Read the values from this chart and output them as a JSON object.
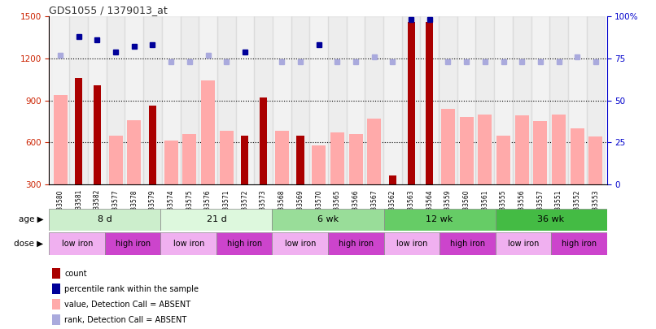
{
  "title": "GDS1055 / 1379013_at",
  "samples": [
    "GSM33580",
    "GSM33581",
    "GSM33582",
    "GSM33577",
    "GSM33578",
    "GSM33579",
    "GSM33574",
    "GSM33575",
    "GSM33576",
    "GSM33571",
    "GSM33572",
    "GSM33573",
    "GSM33568",
    "GSM33569",
    "GSM33570",
    "GSM33565",
    "GSM33566",
    "GSM33567",
    "GSM33562",
    "GSM33563",
    "GSM33564",
    "GSM33559",
    "GSM33560",
    "GSM33561",
    "GSM33555",
    "GSM33556",
    "GSM33557",
    "GSM33551",
    "GSM33552",
    "GSM33553"
  ],
  "count_values": [
    null,
    1060,
    1010,
    null,
    null,
    860,
    null,
    null,
    null,
    null,
    650,
    920,
    null,
    650,
    null,
    null,
    null,
    null,
    360,
    1460,
    1460,
    null,
    null,
    null,
    null,
    null,
    null,
    null,
    null,
    null
  ],
  "absent_values": [
    940,
    null,
    null,
    650,
    760,
    null,
    610,
    660,
    1040,
    680,
    null,
    null,
    680,
    null,
    580,
    670,
    660,
    770,
    null,
    null,
    null,
    840,
    780,
    800,
    650,
    790,
    750,
    800,
    700,
    640
  ],
  "rank_present": [
    null,
    88,
    86,
    79,
    82,
    83,
    null,
    null,
    null,
    null,
    79,
    null,
    null,
    null,
    83,
    null,
    null,
    null,
    null,
    98,
    98,
    null,
    null,
    null,
    null,
    null,
    null,
    null,
    null,
    null
  ],
  "rank_absent": [
    77,
    null,
    null,
    null,
    null,
    null,
    73,
    73,
    77,
    73,
    null,
    null,
    73,
    73,
    null,
    73,
    73,
    76,
    73,
    null,
    null,
    73,
    73,
    73,
    73,
    73,
    73,
    73,
    76,
    73
  ],
  "age_groups": [
    {
      "label": "8 d",
      "start": 0,
      "end": 6,
      "color": "#cceecc"
    },
    {
      "label": "21 d",
      "start": 6,
      "end": 12,
      "color": "#ddf8dd"
    },
    {
      "label": "6 wk",
      "start": 12,
      "end": 18,
      "color": "#99dd99"
    },
    {
      "label": "12 wk",
      "start": 18,
      "end": 24,
      "color": "#66cc66"
    },
    {
      "label": "36 wk",
      "start": 24,
      "end": 30,
      "color": "#44bb44"
    }
  ],
  "dose_groups": [
    {
      "label": "low iron",
      "start": 0,
      "end": 3,
      "color": "#f0b0f0"
    },
    {
      "label": "high iron",
      "start": 3,
      "end": 6,
      "color": "#cc44cc"
    },
    {
      "label": "low iron",
      "start": 6,
      "end": 9,
      "color": "#f0b0f0"
    },
    {
      "label": "high iron",
      "start": 9,
      "end": 12,
      "color": "#cc44cc"
    },
    {
      "label": "low iron",
      "start": 12,
      "end": 15,
      "color": "#f0b0f0"
    },
    {
      "label": "high iron",
      "start": 15,
      "end": 18,
      "color": "#cc44cc"
    },
    {
      "label": "low iron",
      "start": 18,
      "end": 21,
      "color": "#f0b0f0"
    },
    {
      "label": "high iron",
      "start": 21,
      "end": 24,
      "color": "#cc44cc"
    },
    {
      "label": "low iron",
      "start": 24,
      "end": 27,
      "color": "#f0b0f0"
    },
    {
      "label": "high iron",
      "start": 27,
      "end": 30,
      "color": "#cc44cc"
    }
  ],
  "ylim_left": [
    300,
    1500
  ],
  "ylim_right": [
    0,
    100
  ],
  "yticks_left": [
    300,
    600,
    900,
    1200,
    1500
  ],
  "yticks_right": [
    0,
    25,
    50,
    75,
    100
  ],
  "grid_lines": [
    600,
    900,
    1200
  ],
  "color_count": "#aa0000",
  "color_absent_bar": "#ffaaaa",
  "color_rank_present": "#000099",
  "color_rank_absent": "#aaaadd",
  "left_axis_color": "#cc2200",
  "right_axis_color": "#0000cc"
}
